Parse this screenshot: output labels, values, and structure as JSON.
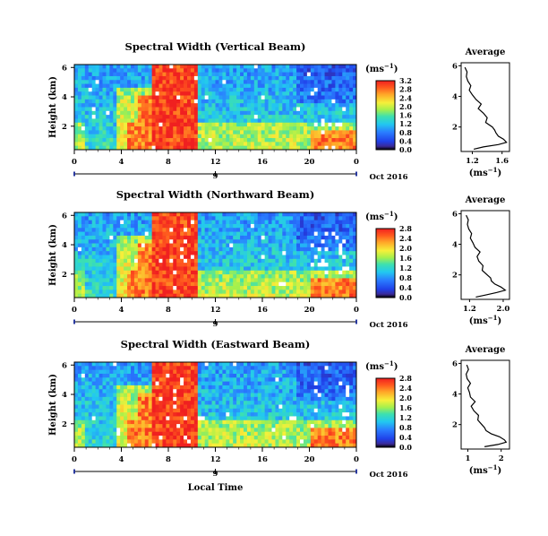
{
  "chart_data": [
    {
      "type": "heatmap",
      "title": "Spectral Width (Vertical Beam)",
      "ylabel": "Height (km)",
      "x_ticks": [
        "0",
        "4",
        "8",
        "12",
        "16",
        "20",
        "0"
      ],
      "y_ticks": [
        "2",
        "4",
        "6"
      ],
      "ylim": [
        0.4,
        6.2
      ],
      "xlim": [
        0,
        24
      ],
      "date_tick": "9",
      "date_label": "Oct 2016",
      "colorbar": {
        "unit_label": "(ms",
        "unit_exponent": "−1",
        "unit_close": ")",
        "ticks": [
          "0.0",
          "0.4",
          "0.8",
          "1.2",
          "1.6",
          "2.0",
          "2.4",
          "2.8",
          "3.2"
        ]
      },
      "average": {
        "title": "Average",
        "xlabel": "(ms",
        "xlabel_exp": "−1",
        "xlabel_close": ")",
        "x_ticks": [
          "1.2",
          "1.6"
        ],
        "x_tick_values": [
          1.2,
          1.6
        ],
        "xlim": [
          1.05,
          1.7
        ],
        "y_ticks": [
          "2",
          "4",
          "6"
        ],
        "height": [
          0.55,
          0.7,
          0.85,
          1.0,
          1.2,
          1.4,
          1.6,
          1.8,
          2.0,
          2.3,
          2.6,
          2.9,
          3.2,
          3.5,
          3.8,
          4.1,
          4.4,
          4.7,
          5.0,
          5.3,
          5.6,
          5.9
        ],
        "width": [
          1.22,
          1.35,
          1.55,
          1.66,
          1.62,
          1.55,
          1.52,
          1.5,
          1.47,
          1.38,
          1.4,
          1.35,
          1.28,
          1.32,
          1.25,
          1.2,
          1.16,
          1.18,
          1.14,
          1.12,
          1.13,
          1.1
        ]
      }
    },
    {
      "type": "heatmap",
      "title": "Spectral Width (Northward Beam)",
      "ylabel": "Height (km)",
      "x_ticks": [
        "0",
        "4",
        "8",
        "12",
        "16",
        "20",
        "0"
      ],
      "y_ticks": [
        "2",
        "4",
        "6"
      ],
      "ylim": [
        0.4,
        6.2
      ],
      "xlim": [
        0,
        24
      ],
      "date_tick": "9",
      "date_label": "Oct 2016",
      "colorbar": {
        "unit_label": "(ms",
        "unit_exponent": "−1",
        "unit_close": ")",
        "ticks": [
          "0.0",
          "0.4",
          "0.8",
          "1.2",
          "1.6",
          "2.0",
          "2.4",
          "2.8"
        ]
      },
      "average": {
        "title": "Average",
        "xlabel": "(ms",
        "xlabel_exp": "−1",
        "xlabel_close": ")",
        "x_ticks": [
          "1.2",
          "2.0"
        ],
        "x_tick_values": [
          1.2,
          2.0
        ],
        "xlim": [
          1.0,
          2.15
        ],
        "y_ticks": [
          "2",
          "4",
          "6"
        ],
        "height": [
          0.55,
          0.7,
          0.85,
          1.0,
          1.2,
          1.4,
          1.6,
          1.8,
          2.0,
          2.3,
          2.6,
          2.9,
          3.2,
          3.5,
          3.8,
          4.1,
          4.4,
          4.7,
          5.0,
          5.3,
          5.6,
          5.9
        ],
        "width": [
          1.35,
          1.6,
          1.85,
          2.05,
          1.95,
          1.8,
          1.72,
          1.7,
          1.62,
          1.5,
          1.52,
          1.42,
          1.38,
          1.45,
          1.33,
          1.28,
          1.22,
          1.25,
          1.18,
          1.15,
          1.17,
          1.12
        ]
      }
    },
    {
      "type": "heatmap",
      "title": "Spectral Width (Eastward Beam)",
      "ylabel": "Height (km)",
      "xlabel": "Local Time",
      "x_ticks": [
        "0",
        "4",
        "8",
        "12",
        "16",
        "20",
        "0"
      ],
      "y_ticks": [
        "2",
        "4",
        "6"
      ],
      "ylim": [
        0.4,
        6.2
      ],
      "xlim": [
        0,
        24
      ],
      "date_tick": "9",
      "date_label": "Oct 2016",
      "colorbar": {
        "unit_label": "(ms",
        "unit_exponent": "−1",
        "unit_close": ")",
        "ticks": [
          "0.0",
          "0.4",
          "0.8",
          "1.2",
          "1.6",
          "2.0",
          "2.4",
          "2.8"
        ]
      },
      "average": {
        "title": "Average",
        "xlabel": "(ms",
        "xlabel_exp": "−1",
        "xlabel_close": ")",
        "x_ticks": [
          "1",
          "2"
        ],
        "x_tick_values": [
          1,
          2
        ],
        "xlim": [
          0.8,
          2.25
        ],
        "y_ticks": [
          "2",
          "4",
          "6"
        ],
        "height": [
          0.55,
          0.7,
          0.85,
          1.0,
          1.2,
          1.4,
          1.6,
          1.8,
          2.0,
          2.3,
          2.6,
          2.9,
          3.2,
          3.5,
          3.8,
          4.1,
          4.4,
          4.7,
          5.0,
          5.3,
          5.6,
          5.9
        ],
        "width": [
          1.5,
          1.9,
          2.15,
          2.1,
          1.95,
          1.7,
          1.55,
          1.5,
          1.42,
          1.3,
          1.32,
          1.18,
          1.1,
          1.22,
          1.08,
          1.05,
          1.0,
          1.08,
          0.98,
          0.95,
          1.02,
          0.97
        ]
      }
    }
  ]
}
